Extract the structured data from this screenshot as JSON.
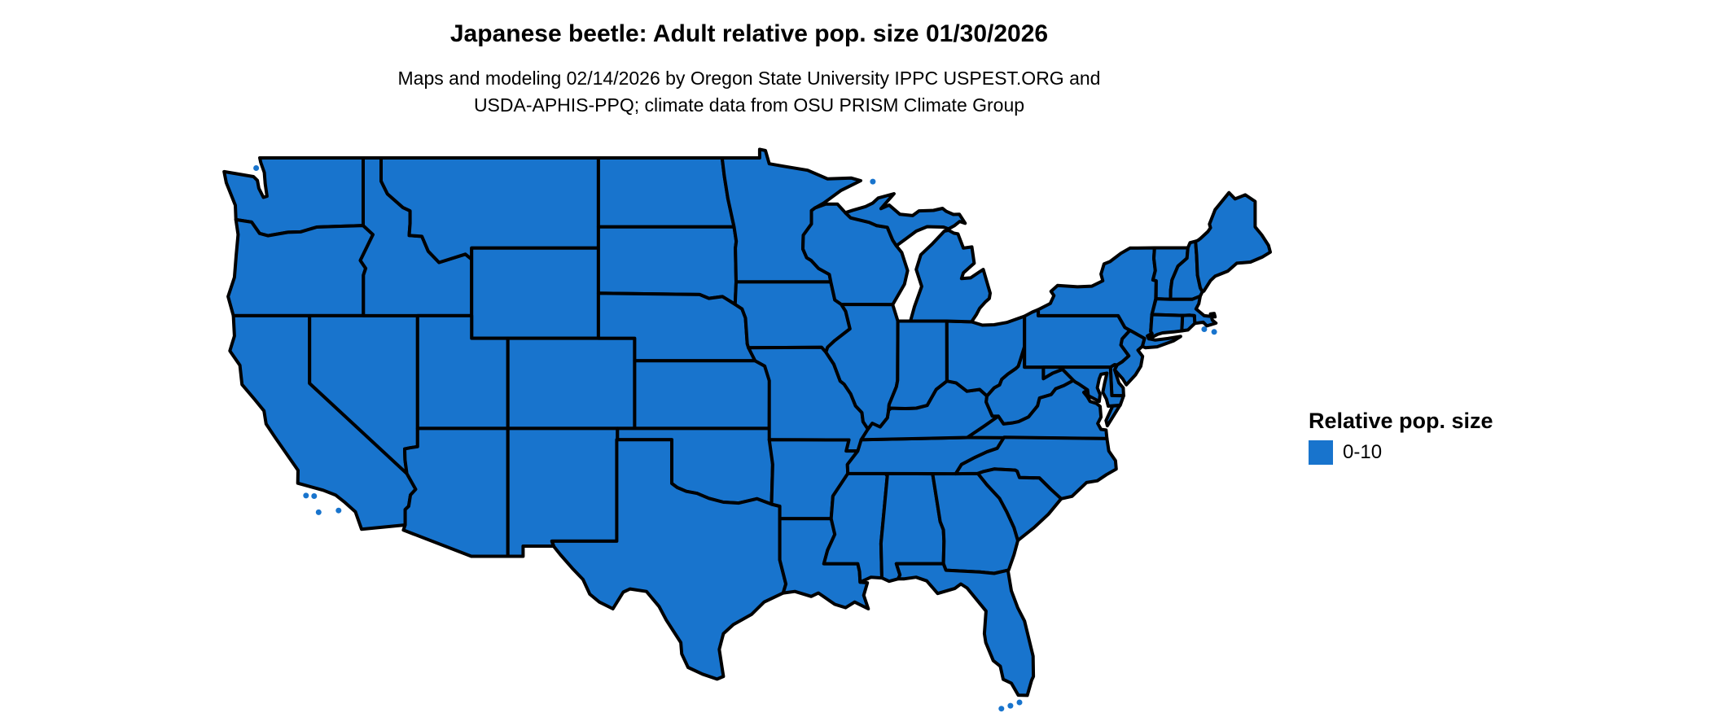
{
  "header": {
    "title": "Japanese beetle: Adult relative pop. size 01/30/2026",
    "subtitle_line1": "Maps and modeling 02/14/2026 by Oregon State University IPPC USPEST.ORG and",
    "subtitle_line2": "USDA-APHIS-PPQ; climate data from OSU PRISM Climate Group"
  },
  "map": {
    "region": "Contiguous United States",
    "fill_color": "#1874CD",
    "border_color": "#000000",
    "background_color": "#FFFFFF"
  },
  "legend": {
    "title": "Relative pop. size",
    "items": [
      {
        "label": "0-10",
        "color": "#1874CD"
      }
    ]
  }
}
